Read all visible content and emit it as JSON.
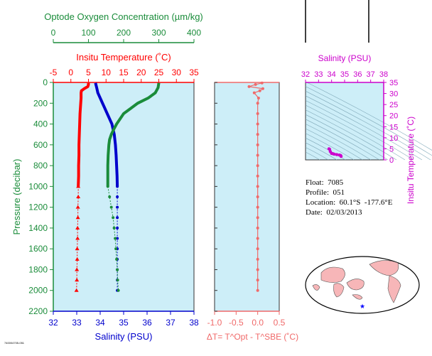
{
  "info": {
    "float_label": "Float:",
    "float_value": "7085",
    "profile_label": "Profile:",
    "profile_value": "051",
    "location_label": "Location:",
    "location_value": "60.1°S  -177.6°E",
    "date_label": "Date:",
    "date_value": "02/03/2013"
  },
  "colors": {
    "background_panel": "#cdeef8",
    "temperature": "#ff0000",
    "salinity": "#0000cc",
    "oxygen": "#1a8c3a",
    "delta_t": "#f06a6a",
    "ts_axis": "#cc00cc",
    "land": "#f7b6b8"
  },
  "chart_data": [
    {
      "type": "line",
      "panel": "main-profile",
      "y_axis": {
        "label": "Pressure (decibar)",
        "ticks": [
          0,
          200,
          400,
          600,
          800,
          1000,
          1200,
          1400,
          1600,
          1800,
          2000,
          2200
        ],
        "range": [
          2200,
          0
        ]
      },
      "x_axis_bottom": {
        "label": "Salinity (PSU)",
        "ticks": [
          32,
          33,
          34,
          35,
          36,
          37,
          38
        ],
        "range": [
          32,
          38
        ]
      },
      "x_axis_top_temperature": {
        "label": "Insitu Temperature (˚C)",
        "ticks": [
          -5,
          0,
          5,
          10,
          15,
          20,
          25,
          30,
          35
        ],
        "range": [
          -5,
          35
        ]
      },
      "x_axis_top_oxygen": {
        "label": "Optode Oxygen Concentration (µm/kg)",
        "ticks": [
          0,
          100,
          200,
          300,
          400
        ],
        "range": [
          0,
          400
        ]
      },
      "series": [
        {
          "name": "temperature",
          "pressure": [
            5,
            20,
            40,
            60,
            80,
            100,
            150,
            200,
            300,
            400,
            500,
            600,
            700,
            800,
            900,
            1000,
            1100,
            1200,
            1300,
            1400,
            1500,
            1600,
            1700,
            1800,
            1900,
            2000
          ],
          "values": [
            5.0,
            5.0,
            4.8,
            3.8,
            3.0,
            2.9,
            2.9,
            2.8,
            2.6,
            2.5,
            2.4,
            2.3,
            2.3,
            2.2,
            2.2,
            2.1,
            2.1,
            2.0,
            2.0,
            1.9,
            1.9,
            1.8,
            1.8,
            1.7,
            1.7,
            1.6
          ]
        },
        {
          "name": "salinity",
          "pressure": [
            5,
            50,
            100,
            150,
            200,
            250,
            300,
            350,
            400,
            450,
            500,
            600,
            700,
            800,
            900,
            1000,
            1100,
            1200,
            1300,
            1400,
            1500,
            1600,
            1700,
            1800,
            1900,
            2000
          ],
          "values": [
            33.8,
            33.85,
            33.9,
            34.0,
            34.1,
            34.2,
            34.3,
            34.4,
            34.5,
            34.55,
            34.6,
            34.65,
            34.68,
            34.7,
            34.72,
            34.73,
            34.73,
            34.73,
            34.73,
            34.73,
            34.73,
            34.73,
            34.73,
            34.73,
            34.73,
            34.73
          ]
        },
        {
          "name": "oxygen",
          "pressure": [
            5,
            50,
            100,
            150,
            200,
            250,
            300,
            350,
            400,
            450,
            500,
            550,
            600,
            700,
            800,
            900,
            1000,
            1100,
            1200,
            1300,
            1400,
            1500,
            1600,
            1700,
            1800,
            1900,
            2000
          ],
          "values": [
            300,
            298,
            290,
            270,
            240,
            220,
            200,
            190,
            180,
            172,
            165,
            160,
            158,
            156,
            155,
            155,
            155,
            160,
            165,
            170,
            173,
            176,
            178,
            180,
            182,
            183,
            185
          ]
        }
      ]
    },
    {
      "type": "scatter",
      "panel": "delta-t",
      "x_axis": {
        "label": "ΔT= T^Opt - T^SBE (˚C)",
        "ticks": [
          -1.0,
          -0.5,
          0.0,
          0.5
        ],
        "range": [
          -1.0,
          0.5
        ]
      },
      "pressure": [
        5,
        20,
        40,
        60,
        80,
        100,
        150,
        200,
        300,
        400,
        500,
        600,
        700,
        800,
        900,
        1000,
        1100,
        1200,
        1300,
        1400,
        1500,
        1600,
        1700,
        1800,
        1900,
        2000
      ],
      "values": [
        0.1,
        -0.05,
        -0.2,
        0.12,
        0.05,
        -0.08,
        0.02,
        0.0,
        0.0,
        0.0,
        0.0,
        0.0,
        0.0,
        0.0,
        0.0,
        0.0,
        0.0,
        0.0,
        0.0,
        0.0,
        0.0,
        0.0,
        0.0,
        0.0,
        0.0,
        0.0
      ]
    },
    {
      "type": "scatter",
      "panel": "ts-diagram",
      "x_axis": {
        "label": "Salinity (PSU)",
        "ticks": [
          32,
          33,
          34,
          35,
          36,
          37,
          38
        ],
        "range": [
          32,
          38
        ]
      },
      "y_axis": {
        "label": "Insitu Temperature (˚C)",
        "ticks": [
          0,
          5,
          10,
          15,
          20,
          25,
          30,
          35
        ],
        "range": [
          0,
          35
        ]
      },
      "salinity": [
        33.8,
        33.85,
        33.9,
        34.0,
        34.1,
        34.2,
        34.4,
        34.6,
        34.7,
        34.73
      ],
      "temperature": [
        5.0,
        4.8,
        3.8,
        2.9,
        2.8,
        2.6,
        2.4,
        2.2,
        2.0,
        1.6
      ]
    }
  ],
  "map": {
    "marker_lon": -177.6,
    "marker_lat": -60.1
  },
  "credit": "740004705-051"
}
